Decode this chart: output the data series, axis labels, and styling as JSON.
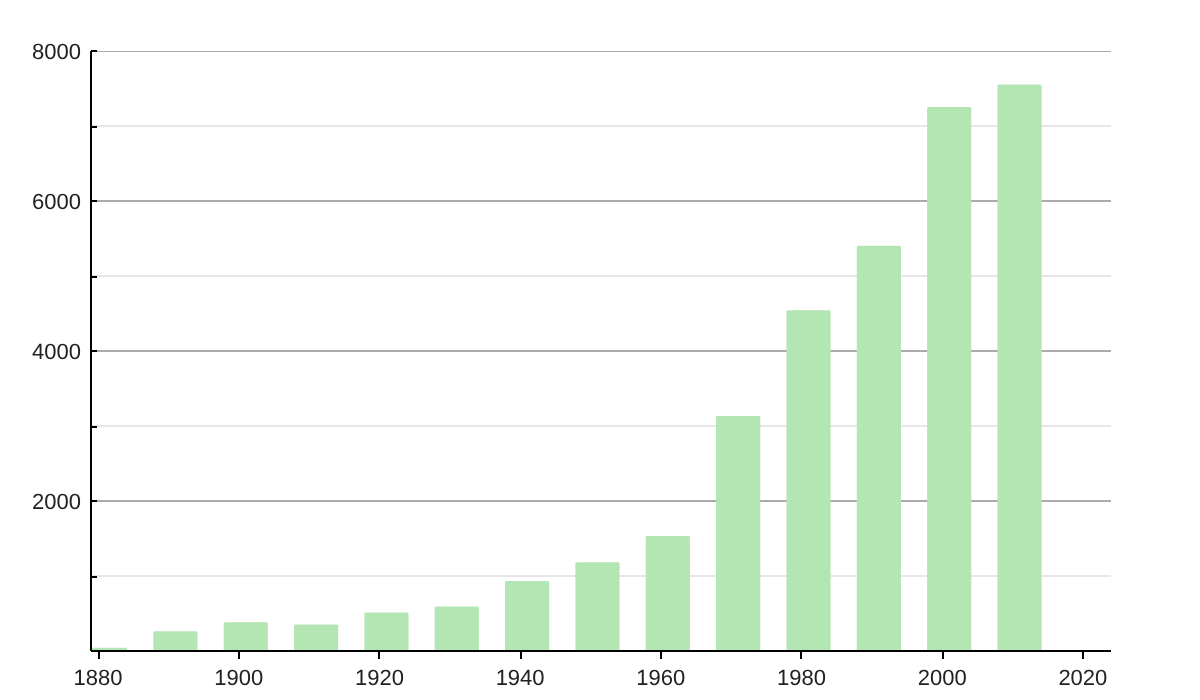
{
  "chart_data": {
    "type": "bar",
    "x": [
      1881,
      1891,
      1901,
      1911,
      1921,
      1931,
      1941,
      1951,
      1961,
      1971,
      1981,
      1991,
      2001,
      2011
    ],
    "values": [
      30,
      250,
      370,
      340,
      500,
      580,
      920,
      1170,
      1520,
      3120,
      4530,
      5390,
      7240,
      7540
    ],
    "color": "#b3e6b3",
    "xlim": [
      1879,
      2024
    ],
    "ylim": [
      0,
      8000
    ],
    "xticks": [
      1880,
      1900,
      1920,
      1940,
      1960,
      1980,
      2000,
      2020
    ],
    "yticks": [
      {
        "value": 0,
        "label": null
      },
      {
        "value": 1000,
        "label": null
      },
      2000,
      {
        "value": 3000,
        "label": null
      },
      4000,
      {
        "value": 5000,
        "label": null
      },
      6000,
      {
        "value": 7000,
        "label": null
      },
      8000
    ],
    "grid": "y"
  }
}
